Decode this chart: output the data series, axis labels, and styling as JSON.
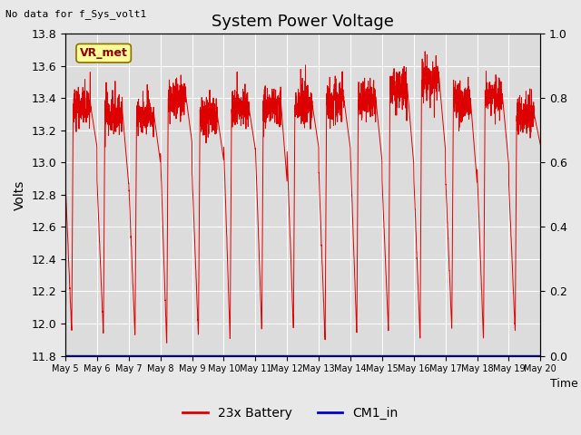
{
  "title": "System Power Voltage",
  "xlabel": "Time",
  "ylabel": "Volts",
  "top_left_text": "No data for f_Sys_volt1",
  "annotation_label": "VR_met",
  "ylim_left": [
    11.8,
    13.8
  ],
  "ylim_right": [
    0.0,
    1.0
  ],
  "yticks_left": [
    11.8,
    12.0,
    12.2,
    12.4,
    12.6,
    12.8,
    13.0,
    13.2,
    13.4,
    13.6,
    13.8
  ],
  "yticks_right": [
    0.0,
    0.2,
    0.4,
    0.6,
    0.8,
    1.0
  ],
  "xtick_labels": [
    "May 5",
    "May 6",
    "May 7",
    "May 8",
    "May 9",
    "May 10",
    "May 11",
    "May 12",
    "May 13",
    "May 14",
    "May 15",
    "May 16",
    "May 17",
    "May 18",
    "May 19",
    "May 20"
  ],
  "line1_color": "#dd0000",
  "line2_color": "#0000cc",
  "legend_labels": [
    "23x Battery",
    "CM1_in"
  ],
  "bg_color": "#e8e8e8",
  "plot_bg_color": "#dcdcdc",
  "grid_color": "#ffffff",
  "annotation_bg": "#ffff99",
  "annotation_border": "#8b7000",
  "figsize": [
    6.4,
    4.8
  ],
  "dpi": 100
}
